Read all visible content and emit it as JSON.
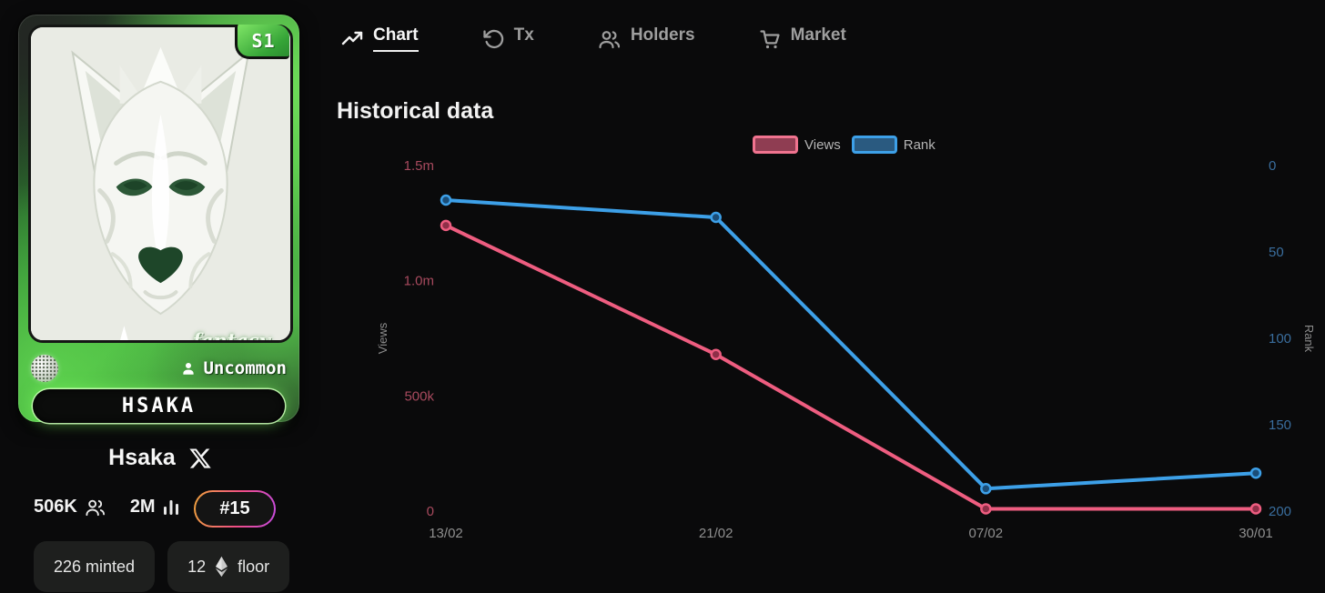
{
  "card": {
    "badge": "S1",
    "watermark": "fantasy",
    "rarity": "Uncommon",
    "name": "HSAKA"
  },
  "profile": {
    "title": "Hsaka",
    "followers": "506K",
    "views": "2M",
    "rank_badge": "#15",
    "minted": "226 minted",
    "floor_value": "12",
    "floor_label": "floor",
    "accent_border_gradient": [
      "#f0a43c",
      "#ef4d86",
      "#c44be0"
    ]
  },
  "nav": {
    "tabs": [
      {
        "label": "Chart",
        "icon": "trend-up-icon",
        "active": true
      },
      {
        "label": "Tx",
        "icon": "history-icon",
        "active": false
      },
      {
        "label": "Holders",
        "icon": "people-icon",
        "active": false
      },
      {
        "label": "Market",
        "icon": "cart-icon",
        "active": false
      }
    ]
  },
  "section_title": "Historical data",
  "legend": [
    {
      "label": "Views",
      "color": "#f0738f",
      "fill": "#8f3d52"
    },
    {
      "label": "Rank",
      "color": "#3da0e8",
      "fill": "#2a5a80"
    }
  ],
  "chart_data": {
    "type": "line",
    "title": "Historical data",
    "grid": false,
    "legend_position": "top-right",
    "categories": [
      "13/02",
      "21/02",
      "07/02",
      "30/01"
    ],
    "category_color": "#8f8f8f",
    "axis_title_color": "#8c8c8c",
    "series": [
      {
        "name": "Views",
        "axis": "left",
        "color": "#ee5d80",
        "dot_fill": "#8f2f48",
        "values": [
          1240000,
          680000,
          10000,
          10000
        ]
      },
      {
        "name": "Rank",
        "axis": "right",
        "color": "#3da0e8",
        "dot_fill": "#1b4d77",
        "values": [
          20,
          30,
          187,
          178
        ]
      }
    ],
    "left_axis": {
      "label": "Views",
      "range": [
        0,
        1500000
      ],
      "tick_color": "#a84a5e",
      "ticks": [
        {
          "value": 1500000,
          "label": "1.5m"
        },
        {
          "value": 1000000,
          "label": "1.0m"
        },
        {
          "value": 500000,
          "label": "500k"
        },
        {
          "value": 0,
          "label": "0"
        }
      ]
    },
    "right_axis": {
      "label": "Rank",
      "range": [
        0,
        200
      ],
      "reversed": true,
      "tick_color": "#3a6e9e",
      "ticks": [
        {
          "value": 0,
          "label": "0"
        },
        {
          "value": 50,
          "label": "50"
        },
        {
          "value": 100,
          "label": "100"
        },
        {
          "value": 150,
          "label": "150"
        },
        {
          "value": 200,
          "label": "200"
        }
      ]
    }
  }
}
